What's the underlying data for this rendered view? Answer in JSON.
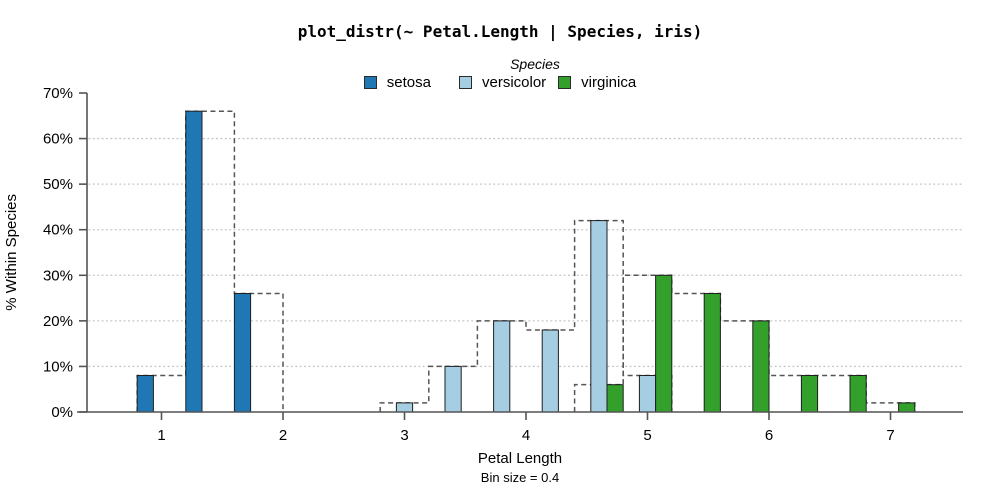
{
  "title": "plot_distr(~ Petal.Length | Species, iris)",
  "legend": {
    "title": "Species",
    "entries": [
      {
        "label": "setosa",
        "color": "#1f78b4"
      },
      {
        "label": "versicolor",
        "color": "#a6cee3"
      },
      {
        "label": "virginica",
        "color": "#33a02c"
      }
    ]
  },
  "chart_data": {
    "type": "bar",
    "subtype": "dodged histogram with dashed full-bin step outlines",
    "title": "plot_distr(~ Petal.Length | Species, iris)",
    "xlabel": "Petal Length",
    "xlabel_note": "Bin size = 0.4",
    "ylabel": "% Within Species",
    "bin_size": 0.4,
    "x_ticks": [
      1,
      2,
      3,
      4,
      5,
      6,
      7
    ],
    "y_ticks_pct": [
      0,
      10,
      20,
      30,
      40,
      50,
      60,
      70
    ],
    "y_tick_suffix": "%",
    "xlim": [
      0.3,
      7.6
    ],
    "ylim_pct": [
      0,
      70
    ],
    "grid": "dotted horizontal at 10-60%",
    "legend_position": "top-center",
    "series": [
      {
        "name": "setosa",
        "color": "#1f78b4",
        "bins": [
          {
            "start": 0.8,
            "end": 1.2,
            "pct": 8
          },
          {
            "start": 1.2,
            "end": 1.6,
            "pct": 66
          },
          {
            "start": 1.6,
            "end": 2.0,
            "pct": 26
          }
        ]
      },
      {
        "name": "versicolor",
        "color": "#a6cee3",
        "bins": [
          {
            "start": 2.8,
            "end": 3.2,
            "pct": 2
          },
          {
            "start": 3.2,
            "end": 3.6,
            "pct": 10
          },
          {
            "start": 3.6,
            "end": 4.0,
            "pct": 20
          },
          {
            "start": 4.0,
            "end": 4.4,
            "pct": 18
          },
          {
            "start": 4.4,
            "end": 4.8,
            "pct": 42
          },
          {
            "start": 4.8,
            "end": 5.2,
            "pct": 8
          }
        ]
      },
      {
        "name": "virginica",
        "color": "#33a02c",
        "bins": [
          {
            "start": 4.4,
            "end": 4.8,
            "pct": 6
          },
          {
            "start": 4.8,
            "end": 5.2,
            "pct": 30
          },
          {
            "start": 5.2,
            "end": 5.6,
            "pct": 26
          },
          {
            "start": 5.6,
            "end": 6.0,
            "pct": 20
          },
          {
            "start": 6.0,
            "end": 6.4,
            "pct": 8
          },
          {
            "start": 6.4,
            "end": 6.8,
            "pct": 8
          },
          {
            "start": 6.8,
            "end": 7.2,
            "pct": 2
          }
        ]
      }
    ],
    "colors": {
      "axis": "#545454",
      "tick_text": "#000000",
      "bar_border": "#1f1f1f",
      "outline_dash": "#555555",
      "gridline": "#c4c4c4",
      "background": "#ffffff"
    }
  }
}
